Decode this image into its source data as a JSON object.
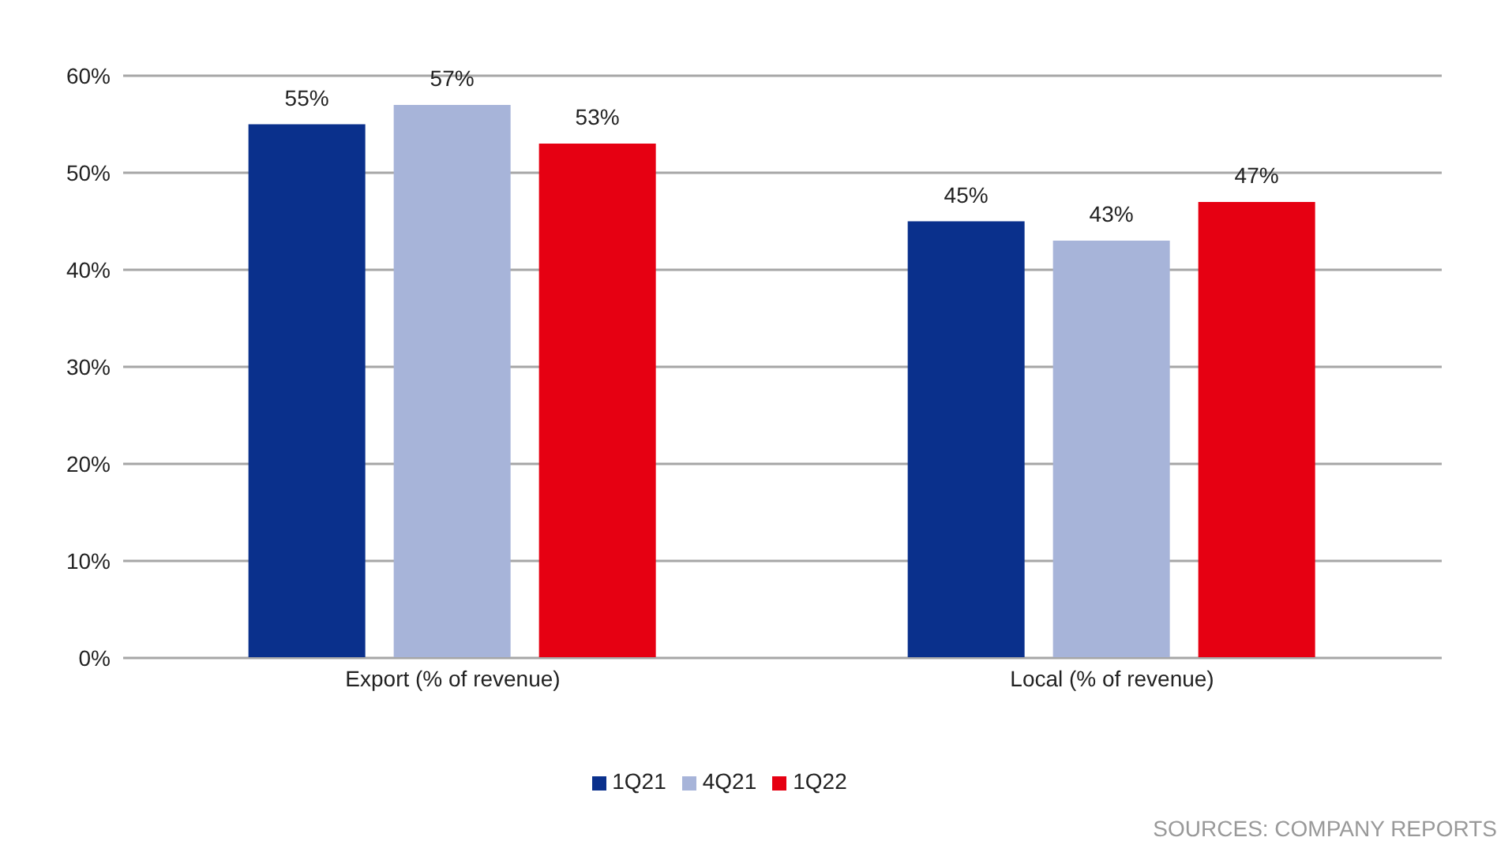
{
  "chart_data": {
    "type": "bar",
    "categories": [
      "Export (% of revenue)",
      "Local (% of revenue)"
    ],
    "series": [
      {
        "name": "1Q21",
        "color": "#0a308c",
        "values": [
          55,
          45
        ],
        "value_labels": [
          "55%",
          "45%"
        ]
      },
      {
        "name": "4Q21",
        "color": "#a7b4d9",
        "values": [
          57,
          43
        ],
        "value_labels": [
          "57%",
          "43%"
        ]
      },
      {
        "name": "1Q22",
        "color": "#e60012",
        "values": [
          53,
          47
        ],
        "value_labels": [
          "53%",
          "47%"
        ]
      }
    ],
    "ylim": [
      0,
      60
    ],
    "yticks": [
      {
        "value": 0,
        "label": "0%"
      },
      {
        "value": 10,
        "label": "10%"
      },
      {
        "value": 20,
        "label": "20%"
      },
      {
        "value": 30,
        "label": "30%"
      },
      {
        "value": 40,
        "label": "40%"
      },
      {
        "value": 50,
        "label": "50%"
      },
      {
        "value": 60,
        "label": "60%"
      }
    ],
    "grid": "y",
    "legend": "bottom",
    "annotations": [
      "SOURCES: COMPANY REPORTS"
    ]
  }
}
